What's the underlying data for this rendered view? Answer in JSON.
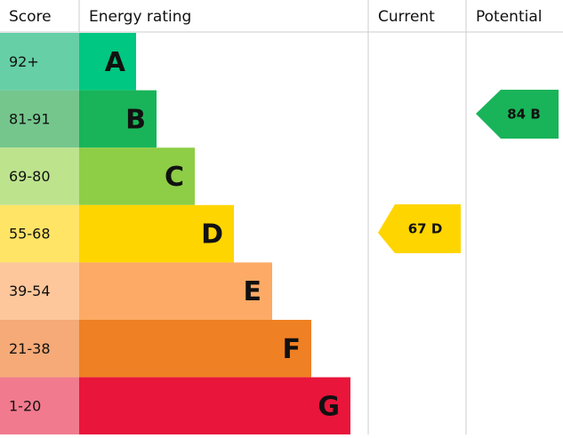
{
  "header": {
    "score": "Score",
    "rating": "Energy rating",
    "current": "Current",
    "potential": "Potential"
  },
  "rows": [
    {
      "score": "92+",
      "letter": "A"
    },
    {
      "score": "81-91",
      "letter": "B"
    },
    {
      "score": "69-80",
      "letter": "C"
    },
    {
      "score": "55-68",
      "letter": "D"
    },
    {
      "score": "39-54",
      "letter": "E"
    },
    {
      "score": "21-38",
      "letter": "F"
    },
    {
      "score": "1-20",
      "letter": "G"
    }
  ],
  "current": {
    "label": "67 D"
  },
  "potential": {
    "label": "84 B"
  }
}
